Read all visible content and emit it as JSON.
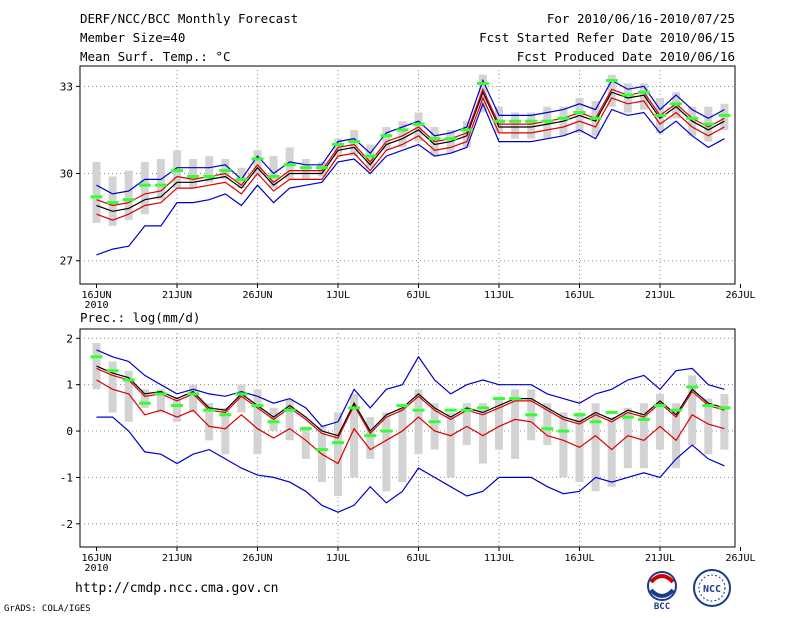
{
  "header": {
    "title": "DERF/NCC/BCC Monthly Forecast",
    "member_size": "Member Size=40",
    "variable": "Mean Surf. Temp.: °C",
    "forecast_for": "For 2010/06/16-2010/07/25",
    "started": "Fcst Started Refer Date 2010/06/15",
    "produced": "Fcst Produced Date 2010/06/16"
  },
  "footer": {
    "url": "http://cmdp.ncc.cma.gov.cn",
    "credit": "GrADS: COLA/IGES",
    "logo_left": "BCC",
    "logo_right": "NCC"
  },
  "colors": {
    "envelope": "#0000cc",
    "ensemble_mean": "#000000",
    "member_band": "#dd0000",
    "box": "#d3d3d3",
    "median": "#33ff33",
    "grid": "#888888"
  },
  "chart_data": [
    {
      "type": "line",
      "title": "Mean Surf. Temp.: °C",
      "xlabel": "",
      "ylabel": "",
      "x_ticks": [
        "16JUN",
        "21JUN",
        "26JUN",
        "1JUL",
        "6JUL",
        "11JUL",
        "16JUL",
        "21JUL",
        "26JUL"
      ],
      "x_year": "2010",
      "ylim": [
        26.2,
        33.7
      ],
      "y_ticks": [
        27,
        30,
        33
      ],
      "grid": true,
      "box_low": [
        28.3,
        28.2,
        28.4,
        28.6,
        29.1,
        29.5,
        29.5,
        29.7,
        29.8,
        29.5,
        29.9,
        29.5,
        29.8,
        29.8,
        29.9,
        30.6,
        30.6,
        30.2,
        30.8,
        30.9,
        31.1,
        30.6,
        30.7,
        30.9,
        32.1,
        31.4,
        31.2,
        31.2,
        31.2,
        31.3,
        31.4,
        31.3,
        32.3,
        32.1,
        32.2,
        31.4,
        31.9,
        31.3,
        31.1,
        31.5
      ],
      "box_high": [
        30.4,
        29.9,
        30.1,
        30.4,
        30.5,
        30.8,
        30.5,
        30.6,
        30.5,
        30.2,
        30.8,
        30.6,
        30.9,
        30.5,
        30.4,
        31.2,
        31.5,
        31.0,
        31.6,
        31.8,
        32.1,
        31.6,
        31.5,
        31.8,
        33.4,
        32.3,
        32.1,
        32.1,
        32.3,
        32.3,
        32.6,
        32.5,
        33.4,
        33.1,
        33.1,
        32.6,
        32.8,
        32.3,
        32.3,
        32.4
      ],
      "medians": [
        29.2,
        29.0,
        29.1,
        29.6,
        29.6,
        30.1,
        29.9,
        29.9,
        30.1,
        29.8,
        30.5,
        29.9,
        30.3,
        30.2,
        30.2,
        31.0,
        31.1,
        30.6,
        31.3,
        31.5,
        31.7,
        31.2,
        31.2,
        31.5,
        33.1,
        31.8,
        31.8,
        31.8,
        31.8,
        31.9,
        32.1,
        31.9,
        33.2,
        32.7,
        32.8,
        32.0,
        32.4,
        31.9,
        31.7,
        32.0
      ],
      "series": [
        {
          "name": "max",
          "color": "#0000cc",
          "values": [
            29.6,
            29.3,
            29.4,
            29.8,
            29.8,
            30.2,
            30.2,
            30.2,
            30.3,
            29.8,
            30.6,
            30.0,
            30.4,
            30.3,
            30.3,
            31.1,
            31.2,
            30.7,
            31.4,
            31.6,
            31.8,
            31.3,
            31.4,
            31.6,
            33.2,
            32.0,
            32.0,
            32.0,
            32.1,
            32.2,
            32.4,
            32.2,
            33.2,
            32.9,
            33.0,
            32.2,
            32.7,
            32.2,
            31.9,
            32.2
          ]
        },
        {
          "name": "ens_mean",
          "color": "#000000",
          "values": [
            28.9,
            28.7,
            28.8,
            29.1,
            29.2,
            29.7,
            29.7,
            29.8,
            29.9,
            29.5,
            30.2,
            29.6,
            30.0,
            30.0,
            30.0,
            30.8,
            30.9,
            30.3,
            31.0,
            31.2,
            31.5,
            31.0,
            31.1,
            31.3,
            32.8,
            31.6,
            31.6,
            31.6,
            31.7,
            31.8,
            32.0,
            31.8,
            32.8,
            32.6,
            32.7,
            31.9,
            32.3,
            31.8,
            31.5,
            31.8
          ]
        },
        {
          "name": "upper",
          "color": "#dd0000",
          "values": [
            29.1,
            28.9,
            29.0,
            29.3,
            29.4,
            29.9,
            29.8,
            29.9,
            30.0,
            29.6,
            30.3,
            29.7,
            30.1,
            30.1,
            30.1,
            30.9,
            31.0,
            30.4,
            31.1,
            31.3,
            31.6,
            31.1,
            31.2,
            31.4,
            32.9,
            31.7,
            31.7,
            31.7,
            31.8,
            31.9,
            32.1,
            31.9,
            32.9,
            32.7,
            32.8,
            32.0,
            32.4,
            31.9,
            31.6,
            31.9
          ]
        },
        {
          "name": "lower",
          "color": "#dd0000",
          "values": [
            28.6,
            28.4,
            28.6,
            28.9,
            29.0,
            29.5,
            29.5,
            29.6,
            29.7,
            29.3,
            30.0,
            29.4,
            29.8,
            29.8,
            29.8,
            30.6,
            30.7,
            30.1,
            30.8,
            31.0,
            31.3,
            30.8,
            30.9,
            31.1,
            32.6,
            31.4,
            31.4,
            31.4,
            31.5,
            31.6,
            31.8,
            31.6,
            32.6,
            32.4,
            32.5,
            31.7,
            32.1,
            31.6,
            31.3,
            31.6
          ]
        },
        {
          "name": "min",
          "color": "#0000cc",
          "values": [
            27.2,
            27.4,
            27.5,
            28.2,
            28.2,
            29.0,
            29.0,
            29.1,
            29.3,
            28.9,
            29.6,
            29.0,
            29.5,
            29.6,
            29.7,
            30.4,
            30.5,
            30.0,
            30.6,
            30.8,
            31.0,
            30.6,
            30.7,
            30.9,
            32.4,
            31.1,
            31.1,
            31.1,
            31.2,
            31.3,
            31.5,
            31.2,
            32.2,
            32.0,
            32.1,
            31.4,
            31.8,
            31.3,
            30.9,
            31.2
          ]
        }
      ]
    },
    {
      "type": "line",
      "title": "Prec.: log(mm/d)",
      "xlabel": "",
      "ylabel": "",
      "x_ticks": [
        "16JUN",
        "21JUN",
        "26JUN",
        "1JUL",
        "6JUL",
        "11JUL",
        "16JUL",
        "21JUL",
        "26JUL"
      ],
      "x_year": "2010",
      "ylim": [
        -2.5,
        2.2
      ],
      "y_ticks": [
        -2,
        -1,
        0,
        1,
        2
      ],
      "grid": true,
      "box_low": [
        0.9,
        0.4,
        0.2,
        0.5,
        0.4,
        0.2,
        0.4,
        -0.2,
        -0.5,
        0.4,
        -0.5,
        0.0,
        -0.2,
        -0.6,
        -1.1,
        -1.4,
        -1.0,
        -0.6,
        -1.3,
        -1.1,
        -0.5,
        -0.4,
        -1.0,
        -0.3,
        -0.7,
        -0.4,
        -0.6,
        -0.2,
        -0.3,
        -1.0,
        -1.1,
        -1.3,
        -1.2,
        -0.8,
        -0.8,
        -0.4,
        -0.8,
        -0.3,
        -0.5,
        -0.4
      ],
      "box_high": [
        1.9,
        1.5,
        1.3,
        0.9,
        0.9,
        0.7,
        1.0,
        0.6,
        0.5,
        1.0,
        0.9,
        0.5,
        0.7,
        0.1,
        0.1,
        0.4,
        0.8,
        0.3,
        0.4,
        0.5,
        0.9,
        0.6,
        0.4,
        0.6,
        0.6,
        0.7,
        0.9,
        0.9,
        0.6,
        0.4,
        0.4,
        0.6,
        0.3,
        0.5,
        0.6,
        0.8,
        0.6,
        1.2,
        0.7,
        0.8
      ],
      "medians": [
        1.6,
        1.3,
        1.1,
        0.6,
        0.8,
        0.55,
        0.8,
        0.45,
        0.35,
        0.8,
        0.55,
        0.2,
        0.45,
        0.05,
        -0.4,
        -0.25,
        0.5,
        -0.1,
        0.0,
        0.55,
        0.45,
        0.2,
        0.45,
        0.45,
        0.5,
        0.7,
        0.7,
        0.35,
        0.05,
        0.0,
        0.35,
        0.2,
        0.4,
        0.3,
        0.25,
        0.55,
        0.45,
        0.95,
        0.55,
        0.5
      ],
      "series": [
        {
          "name": "max",
          "color": "#0000cc",
          "values": [
            1.75,
            1.6,
            1.5,
            1.2,
            1.0,
            0.8,
            0.9,
            0.8,
            0.75,
            0.85,
            0.75,
            0.6,
            0.7,
            0.5,
            0.1,
            0.2,
            0.9,
            0.5,
            0.9,
            1.0,
            1.6,
            1.1,
            0.8,
            1.0,
            1.1,
            1.0,
            1.0,
            1.0,
            0.8,
            0.7,
            0.6,
            0.8,
            0.9,
            1.1,
            1.2,
            0.9,
            1.3,
            1.35,
            1.0,
            0.9
          ]
        },
        {
          "name": "ens_mean",
          "color": "#000000",
          "values": [
            1.4,
            1.25,
            1.15,
            0.8,
            0.85,
            0.7,
            0.85,
            0.5,
            0.45,
            0.8,
            0.55,
            0.3,
            0.55,
            0.3,
            0.0,
            -0.1,
            0.6,
            0.0,
            0.35,
            0.5,
            0.8,
            0.5,
            0.3,
            0.5,
            0.4,
            0.55,
            0.7,
            0.7,
            0.5,
            0.3,
            0.2,
            0.4,
            0.25,
            0.45,
            0.35,
            0.65,
            0.35,
            0.9,
            0.6,
            0.5
          ]
        },
        {
          "name": "upper",
          "color": "#dd0000",
          "values": [
            1.35,
            1.2,
            1.1,
            0.75,
            0.8,
            0.65,
            0.8,
            0.45,
            0.4,
            0.75,
            0.5,
            0.25,
            0.5,
            0.25,
            -0.05,
            -0.15,
            0.55,
            -0.05,
            0.3,
            0.45,
            0.75,
            0.45,
            0.25,
            0.45,
            0.35,
            0.5,
            0.65,
            0.65,
            0.45,
            0.25,
            0.15,
            0.35,
            0.2,
            0.4,
            0.3,
            0.6,
            0.3,
            0.85,
            0.55,
            0.45
          ]
        },
        {
          "name": "lower",
          "color": "#dd0000",
          "values": [
            1.1,
            0.9,
            0.8,
            0.35,
            0.45,
            0.3,
            0.45,
            0.1,
            0.05,
            0.35,
            0.05,
            -0.15,
            0.05,
            -0.2,
            -0.5,
            -0.7,
            0.05,
            -0.4,
            -0.2,
            0.0,
            0.3,
            0.0,
            -0.1,
            0.1,
            -0.1,
            0.1,
            0.25,
            0.2,
            -0.1,
            -0.2,
            -0.35,
            -0.1,
            -0.4,
            -0.1,
            -0.2,
            0.1,
            -0.2,
            0.35,
            0.15,
            0.05
          ]
        },
        {
          "name": "min",
          "color": "#0000cc",
          "values": [
            0.3,
            0.3,
            0.0,
            -0.45,
            -0.5,
            -0.7,
            -0.5,
            -0.4,
            -0.6,
            -0.8,
            -0.95,
            -1.0,
            -1.1,
            -1.3,
            -1.6,
            -1.75,
            -1.6,
            -1.2,
            -1.55,
            -1.3,
            -0.8,
            -1.0,
            -1.2,
            -1.4,
            -1.3,
            -1.0,
            -1.0,
            -1.0,
            -1.2,
            -1.35,
            -1.3,
            -1.0,
            -1.1,
            -1.0,
            -0.9,
            -1.0,
            -0.6,
            -0.3,
            -0.6,
            -0.75
          ]
        }
      ]
    }
  ]
}
